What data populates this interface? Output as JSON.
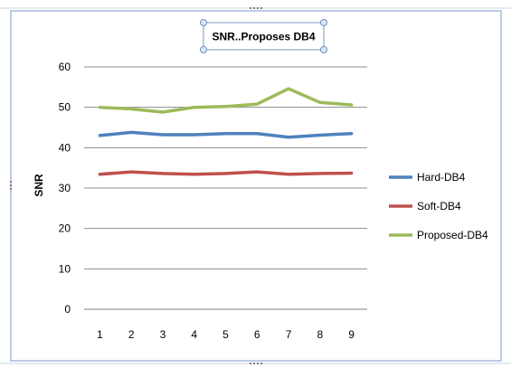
{
  "chart_data": {
    "type": "line",
    "title": "SNR..Proposes DB4",
    "xlabel": "",
    "ylabel": "SNR",
    "categories": [
      "1",
      "2",
      "3",
      "4",
      "5",
      "6",
      "7",
      "8",
      "9"
    ],
    "ylim": [
      0,
      60
    ],
    "yticks": [
      0,
      10,
      20,
      30,
      40,
      50,
      60
    ],
    "grid": "horizontal",
    "legend": "right",
    "series": [
      {
        "name": "Hard-DB4",
        "color": "#4f81bd",
        "values": [
          43,
          43.8,
          43.2,
          43.2,
          43.5,
          43.5,
          42.6,
          43.1,
          43.5
        ]
      },
      {
        "name": "Soft-DB4",
        "color": "#c0504d",
        "values": [
          33.4,
          34,
          33.6,
          33.4,
          33.6,
          34,
          33.4,
          33.6,
          33.7
        ]
      },
      {
        "name": "Proposed-DB4",
        "color": "#9bbb59",
        "values": [
          50,
          49.6,
          48.8,
          50,
          50.2,
          50.8,
          54.6,
          51.2,
          50.6
        ]
      }
    ]
  }
}
